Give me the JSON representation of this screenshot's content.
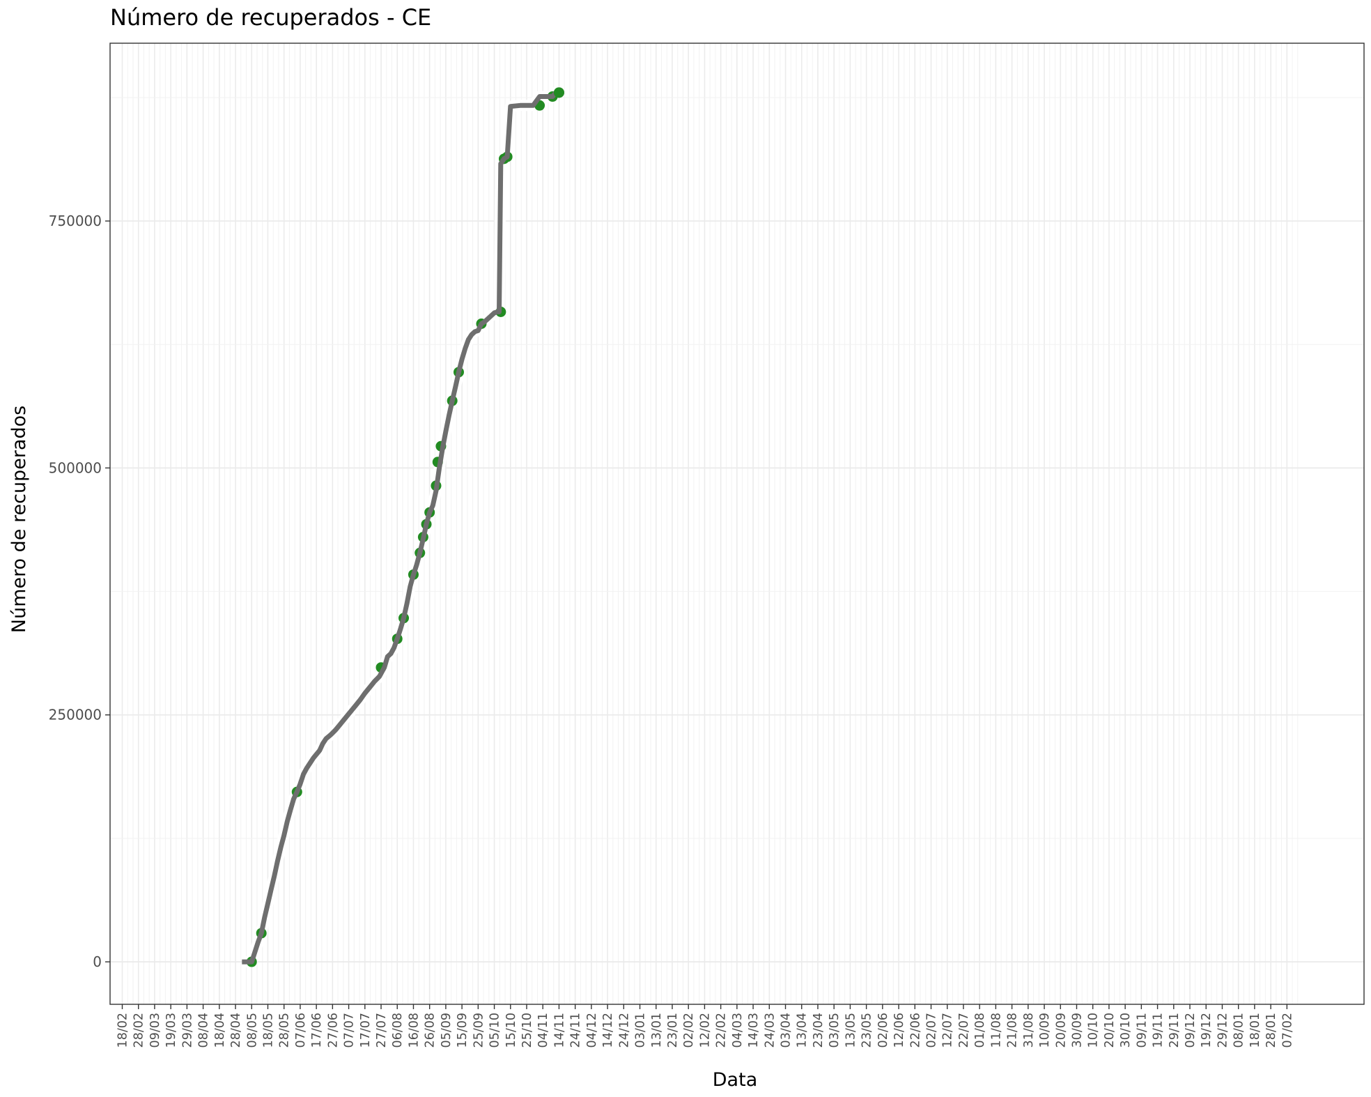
{
  "chart_data": {
    "type": "line",
    "title": "Número de recuperados - CE",
    "xlabel": "Data",
    "ylabel": "Número de recuperados",
    "x_ticks": [
      "18/02",
      "28/02",
      "09/03",
      "19/03",
      "29/03",
      "08/04",
      "18/04",
      "28/04",
      "08/05",
      "18/05",
      "28/05",
      "07/06",
      "17/06",
      "27/06",
      "07/07",
      "17/07",
      "27/07",
      "06/08",
      "16/08",
      "26/08",
      "05/09",
      "15/09",
      "25/09",
      "05/10",
      "15/10",
      "25/10",
      "04/11",
      "14/11",
      "24/11",
      "04/12",
      "14/12",
      "24/12",
      "03/01",
      "13/01",
      "23/01",
      "02/02",
      "12/02",
      "22/02",
      "04/03",
      "14/03",
      "24/03",
      "03/04",
      "13/04",
      "23/04",
      "03/05",
      "13/05",
      "23/05",
      "02/06",
      "12/06",
      "22/06",
      "02/07",
      "12/07",
      "22/07",
      "01/08",
      "11/08",
      "21/08",
      "31/08",
      "10/09",
      "20/09",
      "30/09",
      "10/10",
      "20/10",
      "30/10",
      "09/11",
      "19/11",
      "29/11",
      "09/12",
      "19/12",
      "29/12",
      "08/01",
      "18/01",
      "28/01",
      "07/02"
    ],
    "y_ticks": [
      "0",
      "250000",
      "500000",
      "750000"
    ],
    "ylim": [
      -43000,
      930000
    ],
    "grid": true,
    "series": [
      {
        "points": [
          [
            0,
            0
          ],
          [
            6,
            0
          ],
          [
            8,
            10000
          ],
          [
            10,
            20000
          ],
          [
            12,
            29000
          ],
          [
            14,
            45000
          ],
          [
            16,
            59000
          ],
          [
            18,
            73000
          ],
          [
            20,
            87000
          ],
          [
            22,
            102000
          ],
          [
            24,
            116000
          ],
          [
            26,
            128000
          ],
          [
            28,
            142000
          ],
          [
            30,
            154000
          ],
          [
            32,
            165000
          ],
          [
            34,
            172000
          ],
          [
            36,
            180000
          ],
          [
            38,
            190000
          ],
          [
            40,
            196000
          ],
          [
            42,
            201000
          ],
          [
            44,
            206000
          ],
          [
            46,
            210000
          ],
          [
            48,
            214000
          ],
          [
            50,
            221000
          ],
          [
            52,
            226000
          ],
          [
            55,
            230000
          ],
          [
            58,
            235000
          ],
          [
            61,
            241000
          ],
          [
            64,
            247000
          ],
          [
            67,
            253000
          ],
          [
            70,
            259000
          ],
          [
            73,
            265000
          ],
          [
            76,
            272000
          ],
          [
            79,
            278000
          ],
          [
            82,
            284000
          ],
          [
            85,
            289000
          ],
          [
            88,
            298000
          ],
          [
            90,
            309000
          ],
          [
            92,
            312000
          ],
          [
            94,
            318000
          ],
          [
            96,
            327000
          ],
          [
            98,
            337000
          ],
          [
            100,
            348000
          ],
          [
            102,
            363000
          ],
          [
            104,
            380000
          ],
          [
            106,
            392000
          ],
          [
            108,
            402000
          ],
          [
            110,
            414000
          ],
          [
            112,
            428000
          ],
          [
            114,
            443000
          ],
          [
            116,
            455000
          ],
          [
            118,
            462000
          ],
          [
            120,
            477000
          ],
          [
            122,
            500000
          ],
          [
            124,
            520000
          ],
          [
            126,
            537000
          ],
          [
            128,
            553000
          ],
          [
            130,
            568000
          ],
          [
            132,
            582000
          ],
          [
            134,
            597000
          ],
          [
            136,
            610000
          ],
          [
            138,
            621000
          ],
          [
            140,
            630000
          ],
          [
            142,
            635000
          ],
          [
            144,
            638000
          ],
          [
            146,
            639000
          ],
          [
            148,
            646000
          ],
          [
            150,
            648000
          ],
          [
            152,
            651000
          ],
          [
            154,
            654000
          ],
          [
            156,
            657000
          ],
          [
            158,
            658000
          ],
          [
            159,
            658000
          ],
          [
            160,
            808000
          ],
          [
            162,
            813000
          ],
          [
            164,
            815000
          ],
          [
            166,
            866000
          ],
          [
            172,
            867000
          ],
          [
            180,
            867000
          ],
          [
            184,
            876000
          ],
          [
            188,
            876000
          ],
          [
            192,
            876000
          ],
          [
            194,
            880000
          ],
          [
            196,
            880000
          ]
        ],
        "markers": [
          [
            6,
            0
          ],
          [
            12,
            29000
          ],
          [
            34,
            172000
          ],
          [
            86,
            298000
          ],
          [
            96,
            327000
          ],
          [
            100,
            348000
          ],
          [
            106,
            392000
          ],
          [
            110,
            414000
          ],
          [
            112,
            430000
          ],
          [
            114,
            443000
          ],
          [
            116,
            455000
          ],
          [
            120,
            482000
          ],
          [
            121,
            506000
          ],
          [
            123,
            522000
          ],
          [
            130,
            568000
          ],
          [
            134,
            597000
          ],
          [
            148,
            646000
          ],
          [
            160,
            658000
          ],
          [
            162,
            813000
          ],
          [
            164,
            815000
          ],
          [
            184,
            867000
          ],
          [
            192,
            876000
          ],
          [
            196,
            880000
          ]
        ],
        "color": "#6e6e6e",
        "marker_color": "#228b22"
      }
    ],
    "x_domain_days": [
      -2,
      210
    ]
  }
}
